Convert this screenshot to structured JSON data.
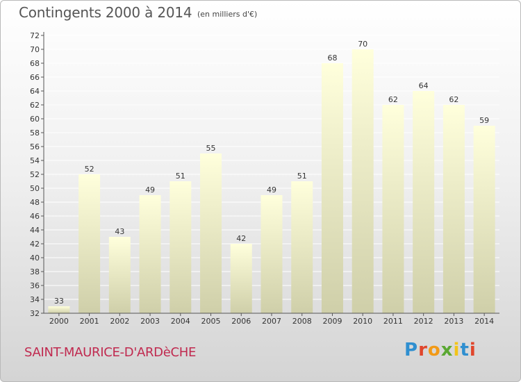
{
  "header": {
    "title": "Contingents 2000 à 2014",
    "subtitle": "(en milliers d'€)"
  },
  "footer": {
    "commune": "SAINT-MAURICE-D'ARDèCHE"
  },
  "logo": {
    "text": "Proxiti",
    "letter_colors": [
      "#2f8fd0",
      "#e0462c",
      "#f29a17",
      "#5aa832",
      "#f2c419",
      "#2f8fd0",
      "#e0462c"
    ]
  },
  "colors": {
    "bar_top": "#ffffdc",
    "bar_bottom": "#cfcfa9",
    "grid": "#ffffff",
    "axis": "#555555",
    "label": "#333333"
  },
  "chart_data": {
    "type": "bar",
    "title": "Contingents 2000 à 2014",
    "subtitle": "(en milliers d'€)",
    "xlabel": "",
    "ylabel": "",
    "categories": [
      "2000",
      "2001",
      "2002",
      "2003",
      "2004",
      "2005",
      "2006",
      "2007",
      "2008",
      "2009",
      "2010",
      "2011",
      "2012",
      "2013",
      "2014"
    ],
    "values": [
      33,
      52,
      43,
      49,
      51,
      55,
      42,
      49,
      51,
      68,
      70,
      62,
      64,
      62,
      59
    ],
    "ylim": [
      32,
      72
    ],
    "yticks": [
      32,
      34,
      36,
      38,
      40,
      42,
      44,
      46,
      48,
      50,
      52,
      54,
      56,
      58,
      60,
      62,
      64,
      66,
      68,
      70,
      72
    ],
    "grid": true,
    "data_labels": true
  }
}
